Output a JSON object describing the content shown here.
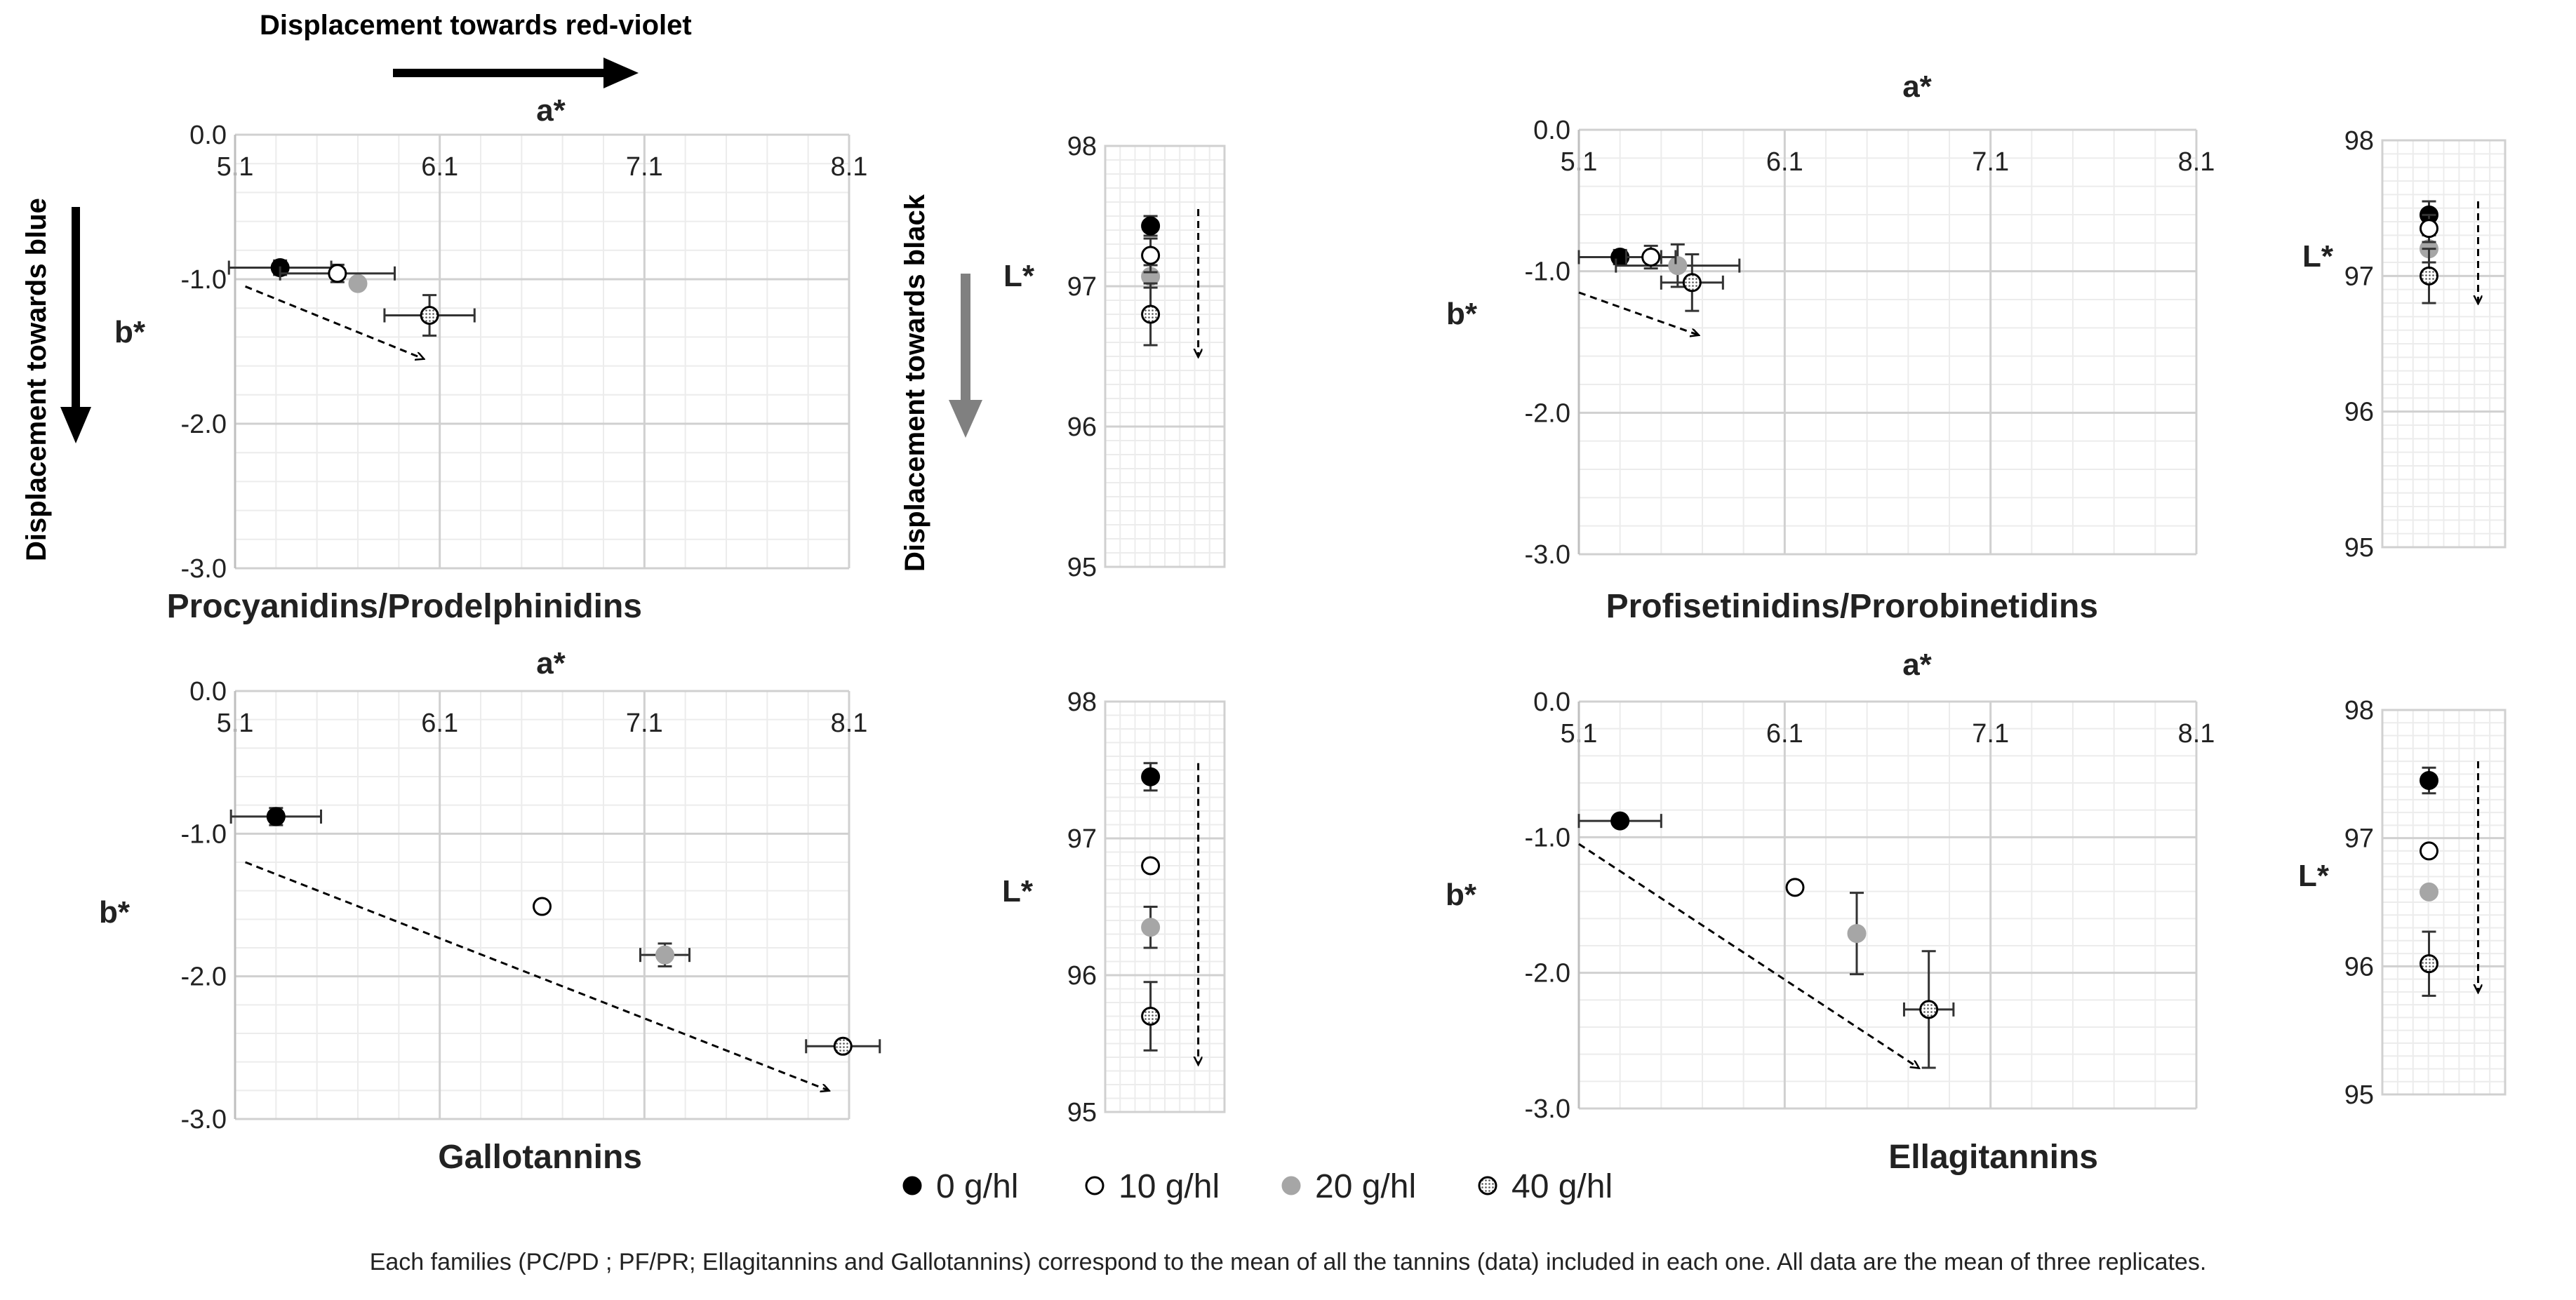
{
  "annotations": {
    "red_violet": "Displacement towards red-violet",
    "blue": "Displacement towards blue",
    "black": "Displacement towards black"
  },
  "legend": {
    "items": [
      {
        "label": "0 g/hl",
        "style": "filled-black"
      },
      {
        "label": "10 g/hl",
        "style": "open"
      },
      {
        "label": "20 g/hl",
        "style": "filled-gray"
      },
      {
        "label": "40 g/hl",
        "style": "dotted"
      }
    ]
  },
  "footnote": {
    "part1": "Each families (PC/PD ; PF/PR; Ellagitannins and Gallotannins) correspond to the mean of all the tannins (data) included in each one.",
    "part2": "All data are the mean of three replicates."
  },
  "colors": {
    "black": "#000000",
    "gray": "#a6a6a6",
    "grid": "#dcdcdc",
    "axis": "#bfbfbf"
  },
  "chart_data": [
    {
      "id": "pc_ab",
      "type": "scatter",
      "title": "Procyanidins/Prodelphinidins",
      "xlabel": "a*",
      "ylabel": "b*",
      "xlim": [
        5.1,
        8.1
      ],
      "ylim": [
        -3.0,
        0.0
      ],
      "xticks": [
        "5.1",
        "6.1",
        "7.1",
        "8.1"
      ],
      "yticks": [
        "0.0",
        "-1.0",
        "-2.0",
        "-3.0"
      ],
      "trend": {
        "from": [
          5.15,
          -1.05
        ],
        "to": [
          6.02,
          -1.55
        ]
      },
      "series": [
        {
          "name": "0 g/hl",
          "x": 5.32,
          "y": -0.92,
          "xerr": 0.25,
          "yerr": 0.05
        },
        {
          "name": "20 g/hl",
          "x": 5.7,
          "y": -1.03,
          "xerr": 0.0,
          "yerr": 0.0
        },
        {
          "name": "10 g/hl",
          "x": 5.6,
          "y": -0.96,
          "xerr": 0.28,
          "yerr": 0.06
        },
        {
          "name": "40 g/hl",
          "x": 6.05,
          "y": -1.25,
          "xerr": 0.22,
          "yerr": 0.14
        }
      ]
    },
    {
      "id": "pc_l",
      "type": "scatter",
      "xlabel": "",
      "ylabel": "L*",
      "ylim": [
        95,
        98
      ],
      "yticks": [
        "98",
        "97",
        "96",
        "95"
      ],
      "trend": {
        "from": 97.55,
        "to": 96.5
      },
      "series": [
        {
          "name": "0 g/hl",
          "y": 97.43,
          "yerr": 0.07
        },
        {
          "name": "20 g/hl",
          "y": 97.07,
          "yerr": 0.08
        },
        {
          "name": "10 g/hl",
          "y": 97.22,
          "yerr": 0.12
        },
        {
          "name": "40 g/hl",
          "y": 96.8,
          "yerr": 0.22
        }
      ]
    },
    {
      "id": "pf_ab",
      "type": "scatter",
      "title": "Profisetinidins/Prorobinetidins",
      "xlabel": "a*",
      "ylabel": "b*",
      "xlim": [
        5.1,
        8.1
      ],
      "ylim": [
        -3.0,
        0.0
      ],
      "xticks": [
        "5.1",
        "6.1",
        "7.1",
        "8.1"
      ],
      "yticks": [
        "0.0",
        "-1.0",
        "-2.0",
        "-3.0"
      ],
      "trend": {
        "from": [
          5.1,
          -1.15
        ],
        "to": [
          5.68,
          -1.45
        ]
      },
      "series": [
        {
          "name": "0 g/hl",
          "x": 5.3,
          "y": -0.9,
          "xerr": 0.2,
          "yerr": 0.05
        },
        {
          "name": "20 g/hl",
          "x": 5.58,
          "y": -0.96,
          "xerr": 0.3,
          "yerr": 0.15
        },
        {
          "name": "10 g/hl",
          "x": 5.45,
          "y": -0.9,
          "xerr": 0.12,
          "yerr": 0.08
        },
        {
          "name": "40 g/hl",
          "x": 5.65,
          "y": -1.08,
          "xerr": 0.15,
          "yerr": 0.2
        }
      ]
    },
    {
      "id": "pf_l",
      "type": "scatter",
      "xlabel": "",
      "ylabel": "L*",
      "ylim": [
        95,
        98
      ],
      "yticks": [
        "98",
        "97",
        "96",
        "95"
      ],
      "trend": {
        "from": 97.55,
        "to": 96.8
      },
      "series": [
        {
          "name": "0 g/hl",
          "y": 97.45,
          "yerr": 0.1
        },
        {
          "name": "20 g/hl",
          "y": 97.2,
          "yerr": 0.1
        },
        {
          "name": "10 g/hl",
          "y": 97.35,
          "yerr": 0.1
        },
        {
          "name": "40 g/hl",
          "y": 97.0,
          "yerr": 0.2
        }
      ]
    },
    {
      "id": "ga_ab",
      "type": "scatter",
      "title": "Gallotannins",
      "xlabel": "a*",
      "ylabel": "b*",
      "xlim": [
        5.1,
        8.1
      ],
      "ylim": [
        -3.0,
        0.0
      ],
      "xticks": [
        "5.1",
        "6.1",
        "7.1",
        "8.1"
      ],
      "yticks": [
        "0.0",
        "-1.0",
        "-2.0",
        "-3.0"
      ],
      "trend": {
        "from": [
          5.15,
          -1.2
        ],
        "to": [
          8.0,
          -2.8
        ]
      },
      "series": [
        {
          "name": "0 g/hl",
          "x": 5.3,
          "y": -0.88,
          "xerr": 0.22,
          "yerr": 0.06
        },
        {
          "name": "10 g/hl",
          "x": 6.6,
          "y": -1.51,
          "xerr": 0.0,
          "yerr": 0.0
        },
        {
          "name": "20 g/hl",
          "x": 7.2,
          "y": -1.85,
          "xerr": 0.12,
          "yerr": 0.08
        },
        {
          "name": "40 g/hl",
          "x": 8.07,
          "y": -2.49,
          "xerr": 0.18,
          "yerr": 0.04
        }
      ]
    },
    {
      "id": "ga_l",
      "type": "scatter",
      "xlabel": "",
      "ylabel": "L*",
      "ylim": [
        95,
        98
      ],
      "yticks": [
        "98",
        "97",
        "96",
        "95"
      ],
      "trend": {
        "from": 97.55,
        "to": 95.35
      },
      "series": [
        {
          "name": "0 g/hl",
          "y": 97.45,
          "yerr": 0.1
        },
        {
          "name": "10 g/hl",
          "y": 96.8,
          "yerr": 0.0
        },
        {
          "name": "20 g/hl",
          "y": 96.35,
          "yerr": 0.15
        },
        {
          "name": "40 g/hl",
          "y": 95.7,
          "yerr": 0.25
        }
      ]
    },
    {
      "id": "el_ab",
      "type": "scatter",
      "title": "Ellagitannins",
      "xlabel": "a*",
      "ylabel": "b*",
      "xlim": [
        5.1,
        8.1
      ],
      "ylim": [
        -3.0,
        0.0
      ],
      "xticks": [
        "5.1",
        "6.1",
        "7.1",
        "8.1"
      ],
      "yticks": [
        "0.0",
        "-1.0",
        "-2.0",
        "-3.0"
      ],
      "trend": {
        "from": [
          5.1,
          -1.05
        ],
        "to": [
          6.75,
          -2.7
        ]
      },
      "series": [
        {
          "name": "0 g/hl",
          "x": 5.3,
          "y": -0.88,
          "xerr": 0.2,
          "yerr": 0.04
        },
        {
          "name": "10 g/hl",
          "x": 6.15,
          "y": -1.37,
          "xerr": 0.0,
          "yerr": 0.0
        },
        {
          "name": "20 g/hl",
          "x": 6.45,
          "y": -1.71,
          "xerr": 0.0,
          "yerr": 0.3
        },
        {
          "name": "40 g/hl",
          "x": 6.8,
          "y": -2.27,
          "xerr": 0.12,
          "yerr": 0.43
        }
      ]
    },
    {
      "id": "el_l",
      "type": "scatter",
      "xlabel": "",
      "ylabel": "L*",
      "ylim": [
        95,
        98
      ],
      "yticks": [
        "98",
        "97",
        "96",
        "95"
      ],
      "trend": {
        "from": 97.6,
        "to": 95.8
      },
      "series": [
        {
          "name": "0 g/hl",
          "y": 97.45,
          "yerr": 0.1
        },
        {
          "name": "10 g/hl",
          "y": 96.9,
          "yerr": 0.0
        },
        {
          "name": "20 g/hl",
          "y": 96.58,
          "yerr": 0.0
        },
        {
          "name": "40 g/hl",
          "y": 96.02,
          "yerr": 0.25
        }
      ]
    }
  ]
}
